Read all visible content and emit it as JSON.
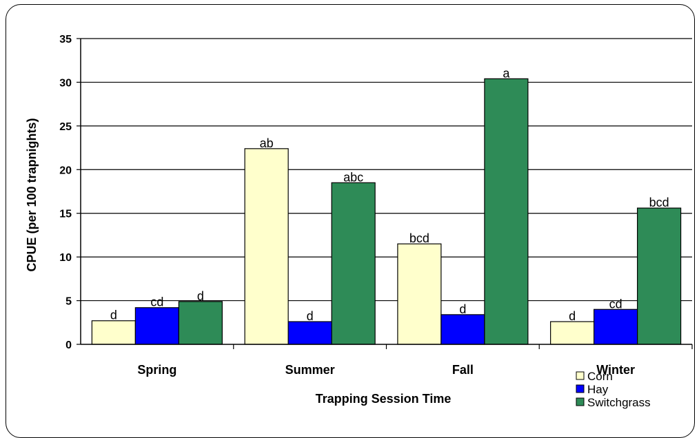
{
  "chart_data": {
    "type": "bar",
    "title": "",
    "xlabel": "Trapping Session Time",
    "ylabel": "CPUE (per 100 trapnights)",
    "ylim": [
      0,
      35
    ],
    "yticks": [
      0,
      5,
      10,
      15,
      20,
      25,
      30,
      35
    ],
    "grid": true,
    "legend_position": "bottom-right",
    "categories": [
      "Spring",
      "Summer",
      "Fall",
      "Winter"
    ],
    "series": [
      {
        "name": "Corn",
        "color": "#ffffcc",
        "values": [
          2.7,
          22.4,
          11.5,
          2.6
        ],
        "labels": [
          "d",
          "ab",
          "bcd",
          "d"
        ]
      },
      {
        "name": "Hay",
        "color": "#0000ff",
        "values": [
          4.2,
          2.6,
          3.4,
          4.0
        ],
        "labels": [
          "cd",
          "d",
          "d",
          "cd"
        ]
      },
      {
        "name": "Switchgrass",
        "color": "#2e8b57",
        "values": [
          4.9,
          18.5,
          30.4,
          15.6
        ],
        "labels": [
          "d",
          "abc",
          "a",
          "bcd"
        ]
      }
    ]
  }
}
